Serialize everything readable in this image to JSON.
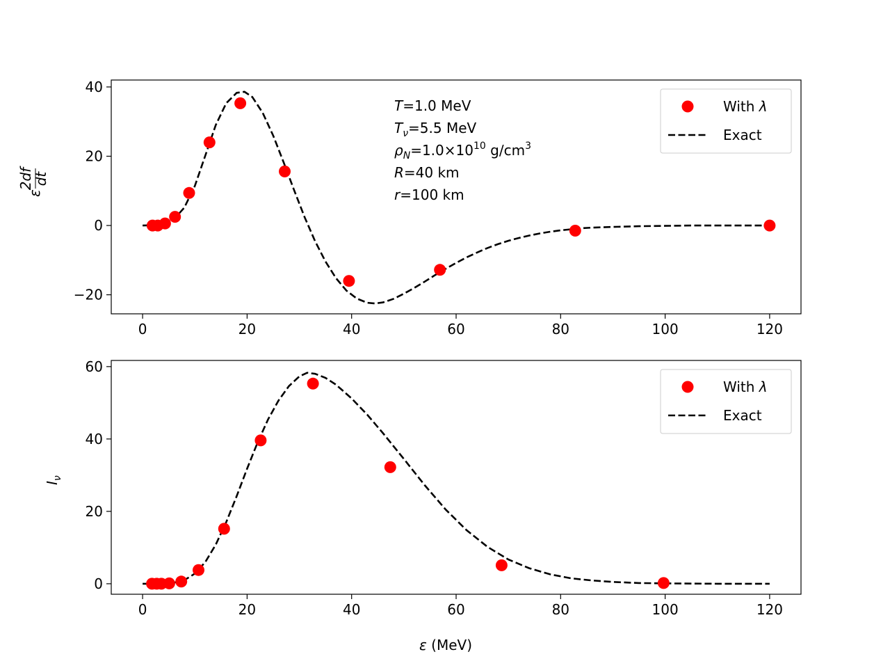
{
  "chart_data": [
    {
      "type": "line",
      "title": "",
      "xlabel": "",
      "ylabel": "ε^(2df/dt)",
      "ylabel_parts": {
        "base": "ε",
        "sup_num": "2df",
        "sup_den": "dt"
      },
      "xlim": [
        -6,
        126
      ],
      "ylim": [
        -25.5,
        42
      ],
      "xticks": [
        0,
        20,
        40,
        60,
        80,
        100,
        120
      ],
      "xtick_labels": [
        "0",
        "20",
        "40",
        "60",
        "80",
        "100",
        "120"
      ],
      "yticks": [
        -20,
        0,
        20,
        40
      ],
      "ytick_labels": [
        "−20",
        "0",
        "20",
        "40"
      ],
      "legend_position": "top-right",
      "annotations": [
        {
          "var": "T",
          "sub": "",
          "text": "=1.0 MeV"
        },
        {
          "var": "T",
          "sub": "ν",
          "text": "=5.5 MeV"
        },
        {
          "var": "ρ",
          "sub": "N",
          "text": "=1.0×10",
          "sup": "10",
          "tail": " g/cm",
          "tail_sup": "3"
        },
        {
          "var": "R",
          "sub": "",
          "text": "=40 km"
        },
        {
          "var": "r",
          "sub": "",
          "text": "=100 km"
        }
      ],
      "series": [
        {
          "name": "With λ",
          "legend_base": "With ",
          "legend_sym": "λ",
          "style": "scatter",
          "color": "#ff0000",
          "x": [
            1.9,
            2.9,
            4.3,
            6.2,
            8.9,
            12.8,
            18.7,
            27.2,
            39.5,
            56.9,
            82.8,
            120.0
          ],
          "y": [
            0.0,
            0.0,
            0.6,
            2.5,
            9.4,
            24.0,
            35.3,
            15.6,
            -16.0,
            -12.8,
            -1.5,
            0.0
          ]
        },
        {
          "name": "Exact",
          "style": "dashed",
          "color": "#000000",
          "x": [
            0,
            2,
            4,
            6,
            8,
            10,
            12,
            14,
            16,
            18,
            19.5,
            21,
            23,
            25,
            27,
            29,
            31,
            33,
            35,
            37,
            39,
            41,
            43,
            44.5,
            46,
            48,
            50,
            52,
            54,
            56,
            58,
            60,
            62,
            64,
            66,
            68,
            70,
            72,
            74,
            76,
            78,
            80,
            82,
            84,
            86,
            88,
            90,
            95,
            100,
            105,
            110,
            115,
            120
          ],
          "y": [
            0.0,
            0.1,
            0.5,
            1.8,
            5.2,
            11.4,
            20.2,
            29.0,
            35.3,
            38.3,
            38.6,
            37.1,
            32.5,
            25.9,
            18.2,
            10.2,
            2.4,
            -4.5,
            -10.4,
            -15.2,
            -18.8,
            -21.1,
            -22.3,
            -22.5,
            -22.2,
            -21.2,
            -19.7,
            -18.0,
            -16.2,
            -14.3,
            -12.5,
            -10.8,
            -9.2,
            -7.8,
            -6.5,
            -5.4,
            -4.4,
            -3.6,
            -2.9,
            -2.3,
            -1.8,
            -1.4,
            -1.1,
            -0.8,
            -0.6,
            -0.5,
            -0.4,
            -0.2,
            -0.1,
            0.0,
            0.0,
            0.0,
            0.0
          ]
        }
      ]
    },
    {
      "type": "line",
      "title": "",
      "xlabel": "ε (MeV)",
      "xlabel_parts": {
        "sym": "ε",
        "rest": " (MeV)"
      },
      "ylabel": "I_ν",
      "ylabel_parts": {
        "base": "I",
        "sub": "ν"
      },
      "xlim": [
        -6,
        126
      ],
      "ylim": [
        -2.9,
        61.7
      ],
      "xticks": [
        0,
        20,
        40,
        60,
        80,
        100,
        120
      ],
      "xtick_labels": [
        "0",
        "20",
        "40",
        "60",
        "80",
        "100",
        "120"
      ],
      "yticks": [
        0,
        20,
        40,
        60
      ],
      "ytick_labels": [
        "0",
        "20",
        "40",
        "60"
      ],
      "legend_position": "top-right",
      "series": [
        {
          "name": "With λ",
          "legend_base": "With ",
          "legend_sym": "λ",
          "style": "scatter",
          "color": "#ff0000",
          "x": [
            1.8,
            2.7,
            3.6,
            5.1,
            7.4,
            10.7,
            15.6,
            22.6,
            32.6,
            47.4,
            68.7,
            99.7
          ],
          "y": [
            0.0,
            0.0,
            0.0,
            0.1,
            0.6,
            3.8,
            15.2,
            39.6,
            55.3,
            32.2,
            5.1,
            0.2
          ]
        },
        {
          "name": "Exact",
          "style": "dashed",
          "color": "#000000",
          "x": [
            0,
            2,
            4,
            6,
            8,
            10,
            12,
            14,
            16,
            18,
            20,
            22,
            24,
            26,
            28,
            30,
            31.5,
            33,
            35,
            37,
            40,
            43,
            46,
            50,
            54,
            58,
            62,
            66,
            70,
            74,
            78,
            82,
            86,
            90,
            95,
            100,
            110,
            120
          ],
          "y": [
            0.0,
            0.0,
            0.1,
            0.3,
            1.0,
            2.8,
            6.0,
            10.8,
            17.0,
            24.2,
            31.8,
            39.0,
            45.4,
            50.6,
            54.6,
            57.3,
            58.3,
            58.0,
            56.9,
            55.0,
            51.2,
            46.7,
            41.6,
            34.5,
            27.2,
            20.5,
            14.8,
            10.2,
            6.7,
            4.3,
            2.6,
            1.5,
            0.9,
            0.5,
            0.2,
            0.1,
            0.0,
            0.0
          ]
        }
      ]
    }
  ]
}
